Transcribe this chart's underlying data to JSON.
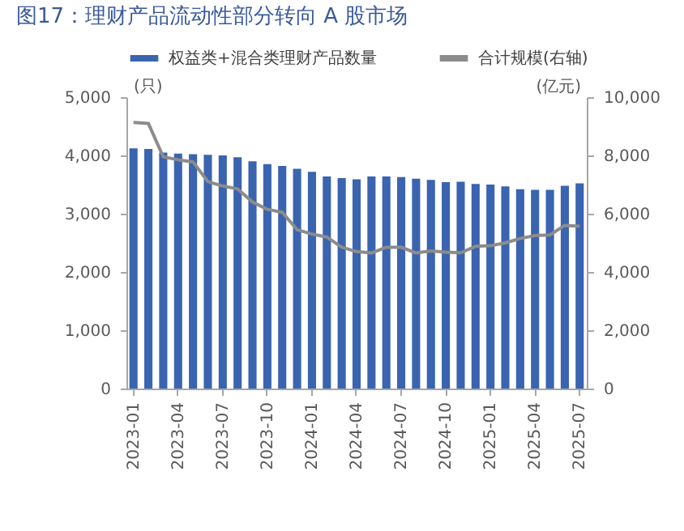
{
  "chart_data": {
    "type": "bar",
    "title": "图17：理财产品流动性部分转向 A 股市场",
    "categories": [
      "2023-01",
      null,
      null,
      "2023-04",
      null,
      null,
      "2023-07",
      null,
      null,
      "2023-10",
      null,
      null,
      "2024-01",
      null,
      null,
      "2024-04",
      null,
      null,
      "2024-07",
      null,
      null,
      "2024-10",
      null,
      null,
      "2025-01",
      null,
      null,
      "2025-04",
      null,
      null,
      "2025-07"
    ],
    "ylabel": "(只)",
    "y2label": "(亿元)",
    "series": [
      {
        "name": "权益类+混合类理财产品数量",
        "color": "#3a64b0",
        "values": [
          4120,
          4110,
          4050,
          4030,
          4020,
          4010,
          4000,
          3970,
          3900,
          3850,
          3820,
          3770,
          3720,
          3640,
          3610,
          3590,
          3640,
          3640,
          3630,
          3600,
          3580,
          3540,
          3550,
          3510,
          3500,
          3470,
          3420,
          3410,
          3410,
          3480,
          3520
        ]
      },
      {
        "name": "合计规模(右轴)",
        "type": "line",
        "axis": "y2",
        "color": "#8c8c8c",
        "values": [
          9130,
          9100,
          7950,
          7850,
          7780,
          7100,
          6950,
          6850,
          6400,
          6150,
          6050,
          5450,
          5300,
          5200,
          4850,
          4700,
          4650,
          4850,
          4850,
          4650,
          4720,
          4680,
          4660,
          4880,
          4900,
          5000,
          5150,
          5250,
          5270,
          5600,
          5570
        ]
      }
    ],
    "ylim": [
      0,
      5000
    ],
    "yticks": [
      0,
      {
        "value": 1000,
        "label": "1,000"
      },
      {
        "value": 2000,
        "label": "2,000"
      },
      {
        "value": 3000,
        "label": "3,000"
      },
      {
        "value": 4000,
        "label": "4,000"
      },
      {
        "value": 5000,
        "label": "5,000"
      }
    ],
    "y2lim": [
      0,
      10000
    ],
    "y2ticks": [
      0,
      {
        "value": 2000,
        "label": "2,000"
      },
      {
        "value": 4000,
        "label": "4,000"
      },
      {
        "value": 6000,
        "label": "6,000"
      },
      {
        "value": 8000,
        "label": "8,000"
      },
      {
        "value": 10000,
        "label": "10,000"
      }
    ],
    "grid": false,
    "legend": "top"
  }
}
